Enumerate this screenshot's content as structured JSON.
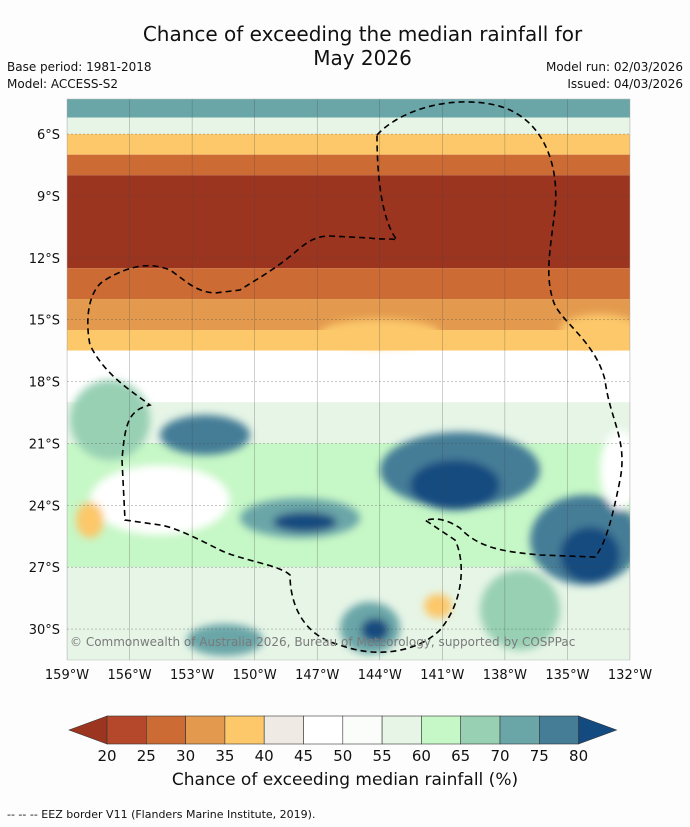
{
  "title_line1": "Chance of exceeding the median rainfall for",
  "title_line2": "May 2026",
  "base_period": "Base period: 1981-2018",
  "model": "Model: ACCESS-S2",
  "model_run": "Model run: 02/03/2026",
  "issued": "Issued: 04/03/2026",
  "copyright": "© Commonwealth of Australia 2026, Bureau of Meteorology, supported by COSPPac",
  "colorbar_title": "Chance of exceeding median rainfall (%)",
  "footnote": "-- -- -- EEZ border V11 (Flanders Marine Institute, 2019).",
  "chart_data": {
    "type": "heatmap",
    "region": "South Pacific",
    "lon_range": [
      -159,
      -132
    ],
    "lat_range": [
      -31.5,
      -4.3
    ],
    "lat_ticks": [
      "6°S",
      "9°S",
      "12°S",
      "15°S",
      "18°S",
      "21°S",
      "24°S",
      "27°S",
      "30°S"
    ],
    "lat_tick_values": [
      -6,
      -9,
      -12,
      -15,
      -18,
      -21,
      -24,
      -27,
      -30
    ],
    "lon_ticks": [
      "159°W",
      "156°W",
      "153°W",
      "150°W",
      "147°W",
      "144°W",
      "141°W",
      "138°W",
      "135°W",
      "132°W"
    ],
    "lon_tick_values": [
      -159,
      -156,
      -153,
      -150,
      -147,
      -144,
      -141,
      -138,
      -135,
      -132
    ],
    "colorbar_ticks": [
      "20",
      "25",
      "30",
      "35",
      "40",
      "45",
      "50",
      "55",
      "60",
      "65",
      "70",
      "75",
      "80"
    ],
    "colorbar_colors": [
      "#9c3520",
      "#b5482a",
      "#cd6b35",
      "#e39a4e",
      "#fcc86a",
      "#efebe4",
      "#ffffff",
      "#fbfdfb",
      "#e6f5e6",
      "#c6f7c6",
      "#98d0b4",
      "#6aa6a8",
      "#457d97",
      "#134b80"
    ],
    "zones": [
      {
        "from_lat": -4.3,
        "to_lat": -5.2,
        "chance_pct": 72
      },
      {
        "from_lat": -5.2,
        "to_lat": -6.0,
        "chance_pct": 55
      },
      {
        "from_lat": -6.0,
        "to_lat": -7.0,
        "chance_pct": 37
      },
      {
        "from_lat": -7.0,
        "to_lat": -8.0,
        "chance_pct": 27
      },
      {
        "from_lat": -8.0,
        "to_lat": -12.5,
        "chance_pct": 18
      },
      {
        "from_lat": -12.5,
        "to_lat": -14.0,
        "chance_pct": 27
      },
      {
        "from_lat": -14.0,
        "to_lat": -15.5,
        "chance_pct": 32
      },
      {
        "from_lat": -15.5,
        "to_lat": -16.5,
        "chance_pct": 38
      },
      {
        "from_lat": -16.5,
        "to_lat": -19.0,
        "chance_pct": 48
      },
      {
        "from_lat": -19.0,
        "to_lat": -21.0,
        "chance_pct": 58
      },
      {
        "from_lat": -21.0,
        "to_lat": -24.0,
        "chance_pct": 63
      },
      {
        "from_lat": -24.0,
        "to_lat": -27.0,
        "chance_pct": 60
      },
      {
        "from_lat": -27.0,
        "to_lat": -31.5,
        "chance_pct": 57
      }
    ]
  }
}
